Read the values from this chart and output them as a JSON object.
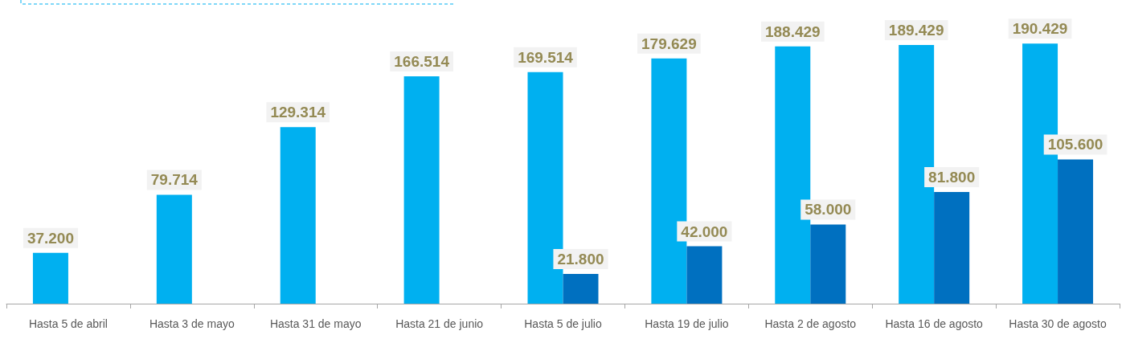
{
  "chart_data": {
    "type": "bar",
    "categories": [
      "Hasta 5 de abril",
      "Hasta 3 de mayo",
      "Hasta 31 de mayo",
      "Hasta 21 de junio",
      "Hasta 5 de julio",
      "Hasta 19 de julio",
      "Hasta 2 de agosto",
      "Hasta 16 de agosto",
      "Hasta 30 de agosto"
    ],
    "series": [
      {
        "color": "#00b0f0",
        "values": [
          37200,
          79714,
          129314,
          166514,
          169514,
          179629,
          188429,
          189429,
          190429
        ],
        "value_labels": [
          "37.200",
          "79.714",
          "129.314",
          "166.514",
          "169.514",
          "179.629",
          "188.429",
          "189.429",
          "190.429"
        ]
      },
      {
        "color": "#0070c0",
        "values": [
          null,
          null,
          null,
          null,
          21800,
          42000,
          58000,
          81800,
          105600
        ],
        "value_labels": [
          null,
          null,
          null,
          null,
          "21.800",
          "42.000",
          "58.000",
          "81.800",
          "105.600"
        ]
      }
    ],
    "grid": false
  }
}
